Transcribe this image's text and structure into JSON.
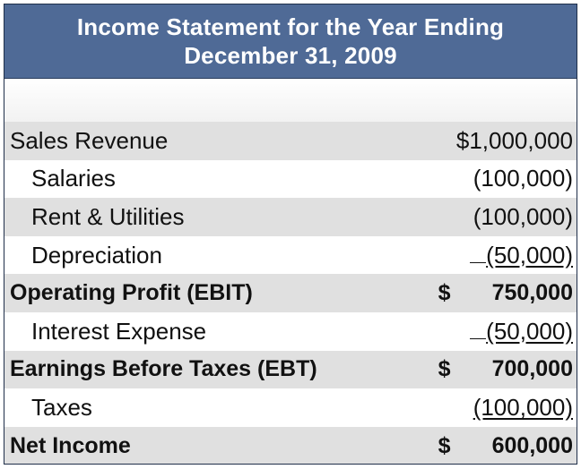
{
  "header": {
    "title_line1": "Income Statement for the Year Ending",
    "title_line2": "December 31, 2009"
  },
  "rows": [
    {
      "label": "Sales Revenue",
      "symbol": "",
      "amount": "$1,000,000"
    },
    {
      "label": "Salaries",
      "symbol": "",
      "amount": "(100,000)"
    },
    {
      "label": "Rent & Utilities",
      "symbol": "",
      "amount": "(100,000)"
    },
    {
      "label": "Depreciation",
      "symbol": "",
      "amount": "(50,000)"
    },
    {
      "label": "Operating Profit (EBIT)",
      "symbol": "$",
      "amount": "750,000"
    },
    {
      "label": "Interest Expense",
      "symbol": "",
      "amount": "(50,000)"
    },
    {
      "label": "Earnings Before Taxes (EBT)",
      "symbol": "$",
      "amount": "700,000"
    },
    {
      "label": "Taxes",
      "symbol": "",
      "amount": "(100,000)"
    },
    {
      "label": "Net Income",
      "symbol": "$",
      "amount": "600,000"
    }
  ],
  "colors": {
    "header_bg": "#4f6a96",
    "header_text": "#ffffff",
    "row_shade": "#e0e0e0"
  }
}
